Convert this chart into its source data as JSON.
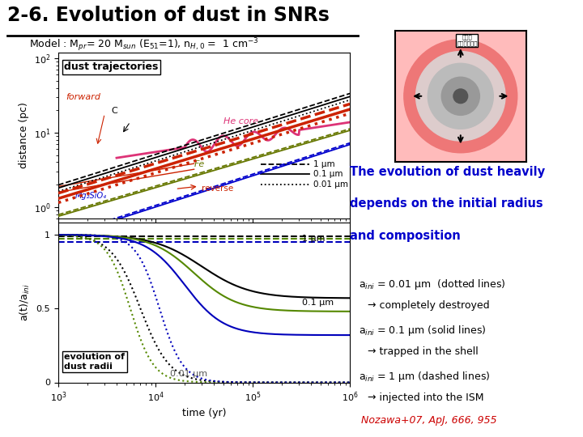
{
  "title": "2-6. Evolution of dust in SNRs",
  "bg_color": "#ffffff",
  "text_right_1_line1": "The evolution of dust heavily",
  "text_right_1_line2": "depends on the initial radius",
  "text_right_1_line3": "and composition",
  "text_box_1a": "a$_{ini}$ = 0.01 μm  (dotted lines)",
  "text_box_1b": "→ completely destroyed",
  "text_box_2a": "a$_{ini}$ = 0.1 μm (solid lines)",
  "text_box_2b": "→ trapped in the shell",
  "text_box_3a": "a$_{ini}$ = 1 μm (dashed lines)",
  "text_box_3b": "→ injected into the ISM",
  "citation": "Nozawa+07, ApJ, 666, 955",
  "color_C": "#000000",
  "color_He": "#dd3377",
  "color_Fe": "#667700",
  "color_Mg": "#0000cc",
  "color_forward": "#cc2200",
  "color_blue_text": "#0000cc",
  "color_red_text": "#cc0000"
}
